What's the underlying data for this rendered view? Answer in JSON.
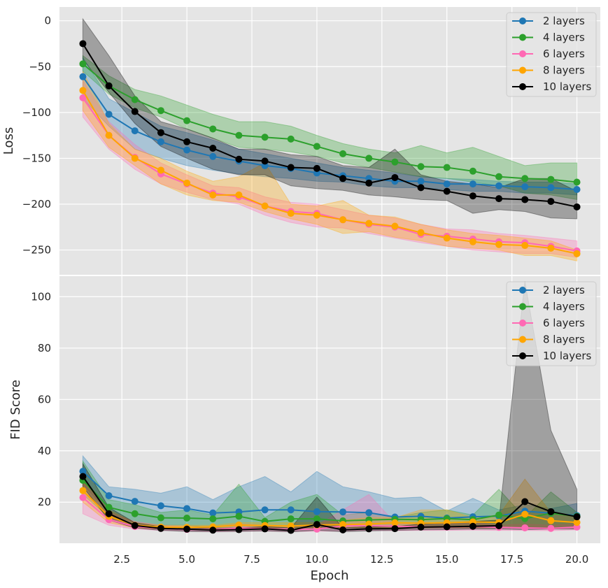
{
  "colors": {
    "plot_bg": "#e5e5e5",
    "grid": "#ffffff",
    "legend_bg": "#e5e5e5",
    "legend_border": "#cccccc"
  },
  "xlabel": "Epoch",
  "x_ticks": [
    2.5,
    5.0,
    7.5,
    10.0,
    12.5,
    15.0,
    17.5,
    20.0
  ],
  "x_tick_labels": [
    "2.5",
    "5.0",
    "7.5",
    "10.0",
    "12.5",
    "15.0",
    "17.5",
    "20.0"
  ],
  "chart_data": [
    {
      "type": "line",
      "title": "",
      "xlabel": "Epoch",
      "ylabel": "Loss",
      "xlim": [
        0.1,
        20.9
      ],
      "ylim": [
        -277,
        15
      ],
      "yticks": [
        0,
        -50,
        -100,
        -150,
        -200,
        -250
      ],
      "ytick_labels": [
        "0",
        "−50",
        "−100",
        "−150",
        "−200",
        "−250"
      ],
      "legend_position": "top-right",
      "x": [
        1,
        2,
        3,
        4,
        5,
        6,
        7,
        8,
        9,
        10,
        11,
        12,
        13,
        14,
        15,
        16,
        17,
        18,
        19,
        20
      ],
      "series": [
        {
          "name": "2 layers",
          "color": "#1f77b4",
          "values": [
            -61,
            -102,
            -120,
            -132,
            -141,
            -148,
            -153,
            -158,
            -161,
            -166,
            -169,
            -172,
            -175,
            -175,
            -178,
            -178,
            -180,
            -181,
            -182,
            -184
          ],
          "lower": [
            -85,
            -115,
            -140,
            -150,
            -158,
            -163,
            -167,
            -170,
            -172,
            -175,
            -176,
            -180,
            -182,
            -182,
            -184,
            -186,
            -186,
            -188,
            -188,
            -190
          ],
          "upper": [
            -40,
            -85,
            -100,
            -115,
            -122,
            -130,
            -140,
            -145,
            -150,
            -155,
            -160,
            -163,
            -166,
            -170,
            -172,
            -173,
            -175,
            -176,
            -176,
            -178
          ]
        },
        {
          "name": "4 layers",
          "color": "#2ca02c",
          "values": [
            -47,
            -71,
            -86,
            -98,
            -109,
            -118,
            -125,
            -127,
            -129,
            -137,
            -145,
            -150,
            -154,
            -159,
            -160,
            -164,
            -170,
            -172,
            -173,
            -176
          ],
          "lower": [
            -55,
            -80,
            -95,
            -105,
            -118,
            -128,
            -138,
            -140,
            -143,
            -148,
            -155,
            -160,
            -165,
            -170,
            -172,
            -176,
            -180,
            -188,
            -190,
            -195
          ],
          "upper": [
            -38,
            -60,
            -75,
            -82,
            -92,
            -102,
            -110,
            -110,
            -115,
            -125,
            -134,
            -140,
            -144,
            -136,
            -144,
            -138,
            -148,
            -158,
            -155,
            -155
          ]
        },
        {
          "name": "6 layers",
          "color": "#ff69b4",
          "values": [
            -84,
            -125,
            -149,
            -167,
            -178,
            -188,
            -192,
            -202,
            -208,
            -210,
            -217,
            -222,
            -225,
            -233,
            -235,
            -238,
            -241,
            -242,
            -246,
            -251
          ],
          "lower": [
            -105,
            -140,
            -162,
            -178,
            -187,
            -195,
            -200,
            -212,
            -220,
            -225,
            -226,
            -232,
            -237,
            -242,
            -246,
            -250,
            -252,
            -254,
            -254,
            -258
          ],
          "upper": [
            -65,
            -110,
            -135,
            -155,
            -168,
            -180,
            -182,
            -192,
            -198,
            -200,
            -206,
            -212,
            -215,
            -222,
            -227,
            -228,
            -232,
            -234,
            -237,
            -240
          ]
        },
        {
          "name": "8 layers",
          "color": "#ffa500",
          "values": [
            -76,
            -125,
            -150,
            -163,
            -177,
            -190,
            -190,
            -202,
            -210,
            -212,
            -217,
            -221,
            -224,
            -231,
            -237,
            -241,
            -244,
            -245,
            -248,
            -254
          ],
          "lower": [
            -98,
            -138,
            -158,
            -178,
            -190,
            -196,
            -198,
            -208,
            -216,
            -222,
            -232,
            -230,
            -236,
            -240,
            -246,
            -248,
            -250,
            -256,
            -256,
            -262
          ],
          "upper": [
            -55,
            -112,
            -140,
            -150,
            -164,
            -175,
            -170,
            -155,
            -200,
            -202,
            -196,
            -212,
            -214,
            -222,
            -228,
            -232,
            -234,
            -237,
            -240,
            -250
          ]
        },
        {
          "name": "10 layers",
          "color": "#000000",
          "values": [
            -25,
            -71,
            -99,
            -122,
            -132,
            -139,
            -151,
            -153,
            -160,
            -161,
            -172,
            -177,
            -171,
            -182,
            -186,
            -191,
            -194,
            -195,
            -197,
            -203
          ],
          "lower": [
            -42,
            -78,
            -112,
            -137,
            -150,
            -162,
            -168,
            -168,
            -180,
            -183,
            -185,
            -190,
            -192,
            -195,
            -196,
            -210,
            -206,
            -208,
            -215,
            -216
          ],
          "upper": [
            2,
            -38,
            -82,
            -110,
            -118,
            -128,
            -140,
            -140,
            -146,
            -148,
            -158,
            -160,
            -140,
            -168,
            -175,
            -178,
            -182,
            -172,
            -172,
            -186
          ]
        }
      ]
    },
    {
      "type": "line",
      "title": "",
      "xlabel": "Epoch",
      "ylabel": "FID Score",
      "xlim": [
        0.1,
        20.9
      ],
      "ylim": [
        4,
        108
      ],
      "yticks": [
        20,
        40,
        60,
        80,
        100
      ],
      "ytick_labels": [
        "20",
        "40",
        "60",
        "80",
        "100"
      ],
      "legend_position": "top-right",
      "x": [
        1,
        2,
        3,
        4,
        5,
        6,
        7,
        8,
        9,
        10,
        11,
        12,
        13,
        14,
        15,
        16,
        17,
        18,
        19,
        20
      ],
      "series": [
        {
          "name": "2 layers",
          "color": "#1f77b4",
          "values": [
            32,
            22.5,
            20.3,
            18.6,
            17.5,
            15.8,
            16.2,
            17,
            17,
            16.3,
            16.2,
            15.9,
            14.2,
            14.5,
            13.8,
            14.3,
            14.6,
            16.5,
            15.7,
            14.8
          ],
          "lower": [
            27,
            16,
            12,
            11,
            11,
            10,
            10,
            10,
            10,
            10,
            10,
            10,
            10,
            10,
            10,
            10,
            10,
            10,
            10,
            10
          ],
          "upper": [
            38,
            26,
            25,
            23.5,
            26,
            21,
            26,
            30,
            24,
            32,
            26,
            24,
            21.5,
            22,
            16.5,
            21.5,
            17,
            19,
            17.5,
            19.5
          ]
        },
        {
          "name": "4 layers",
          "color": "#2ca02c",
          "values": [
            28.5,
            18,
            15.5,
            13.9,
            13.8,
            13.5,
            14.5,
            12.5,
            13.5,
            13.5,
            12.7,
            13.1,
            13.3,
            13.2,
            13.6,
            13.2,
            15,
            13.6,
            15.7,
            14.5
          ],
          "lower": [
            23,
            14,
            11,
            10,
            10,
            10,
            10,
            10,
            10,
            10,
            10,
            10,
            10,
            10,
            10,
            10,
            10,
            10,
            10,
            10
          ],
          "upper": [
            36,
            21,
            19,
            16,
            17,
            15,
            27,
            14,
            20,
            23,
            15,
            16,
            14,
            16,
            17,
            15,
            25,
            14,
            24,
            16
          ]
        },
        {
          "name": "6 layers",
          "color": "#ff69b4",
          "values": [
            21.8,
            13.2,
            10.5,
            9.8,
            9.4,
            9.3,
            9.9,
            9.7,
            9.4,
            9.5,
            10.7,
            10.9,
            10.6,
            10.4,
            10.3,
            10.5,
            10.2,
            10,
            9.8,
            10.3
          ],
          "lower": [
            15.5,
            11,
            9.5,
            9,
            8.8,
            8.5,
            8.7,
            8.8,
            8.6,
            8.7,
            8.8,
            9,
            8.9,
            9,
            9,
            9.1,
            9,
            9,
            8.9,
            9.2
          ],
          "upper": [
            28,
            16,
            12.5,
            11,
            10.5,
            10.5,
            11.5,
            11,
            10.5,
            11,
            17,
            23,
            12,
            12,
            12,
            12,
            11,
            11.5,
            11,
            11.5
          ]
        },
        {
          "name": "8 layers",
          "color": "#ffa500",
          "values": [
            24.5,
            14.5,
            11,
            10.3,
            10.2,
            10.4,
            11.1,
            10.9,
            10.7,
            11.1,
            11.3,
            11.5,
            12,
            11.8,
            12,
            12.3,
            12.1,
            15.3,
            12.8,
            12.1
          ],
          "lower": [
            20,
            12,
            10,
            9.5,
            9.5,
            9.5,
            10,
            10,
            10,
            10,
            10,
            10,
            10,
            10,
            10,
            10,
            10,
            10,
            10,
            10
          ],
          "upper": [
            28,
            17,
            12,
            11,
            11,
            11,
            12,
            12,
            12,
            12,
            13,
            14,
            14,
            17,
            17,
            14,
            15,
            29,
            16,
            15
          ]
        },
        {
          "name": "10 layers",
          "color": "#000000",
          "values": [
            30,
            15.5,
            10.9,
            9.8,
            9.5,
            9.1,
            9.3,
            9.6,
            9,
            11.3,
            9.2,
            9.6,
            9.7,
            10.3,
            10.4,
            10.6,
            10.8,
            20.2,
            16.3,
            14.3
          ],
          "lower": [
            26,
            13,
            10,
            9,
            8.6,
            8.5,
            8.6,
            8.8,
            8.4,
            9,
            8.5,
            8.8,
            9,
            9.2,
            9.3,
            9.5,
            9.5,
            9.3,
            9.5,
            9.5
          ],
          "upper": [
            35,
            18,
            12,
            10.5,
            10.2,
            9.8,
            10,
            10.5,
            10,
            22,
            10,
            10.5,
            10.5,
            11.5,
            12,
            12.5,
            13,
            106,
            48,
            25
          ]
        }
      ]
    }
  ]
}
